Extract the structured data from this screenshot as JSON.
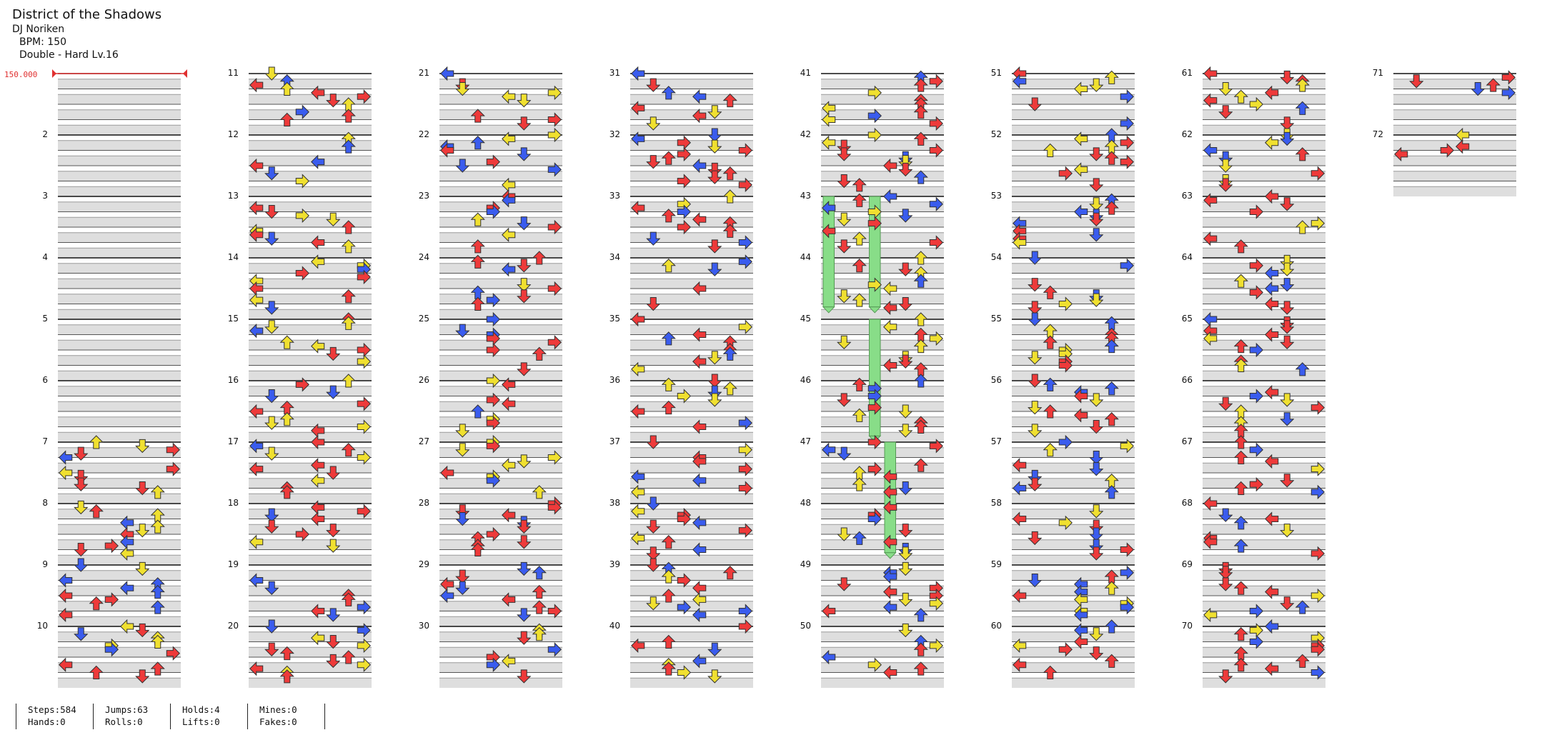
{
  "song": {
    "title": "District of the Shadows",
    "artist": "DJ Noriken",
    "bpm_label": "BPM: 150",
    "difficulty": "Double - Hard Lv.16"
  },
  "bpm_marker": "150.000",
  "colors": {
    "red": "#ee3a3a",
    "blue": "#3a5cee",
    "yellow": "#f0e030",
    "magenta": "#e040e0",
    "hold": "#88dd88",
    "band": "#dedede",
    "line": "#111111"
  },
  "chart_data": {
    "type": "table",
    "measures": [
      1,
      2,
      3,
      4,
      5,
      6,
      7,
      8,
      9,
      10,
      11,
      12,
      13,
      14,
      15,
      16,
      17,
      18,
      19,
      20,
      21,
      22,
      23,
      24,
      25,
      26,
      27,
      28,
      29,
      30,
      31,
      32,
      33,
      34,
      35,
      36,
      37,
      38,
      39,
      40,
      41,
      42,
      43,
      44,
      45,
      46,
      47,
      48,
      49,
      50,
      51,
      52,
      53,
      54,
      55,
      56,
      57,
      58,
      59,
      60,
      61,
      62,
      63,
      64,
      65,
      66,
      67,
      68,
      69,
      70,
      71,
      72
    ],
    "measure_labels": [
      "2",
      "3",
      "4",
      "5",
      "6",
      "7",
      "8",
      "9",
      "10",
      "11",
      "12",
      "13",
      "14",
      "15",
      "16",
      "17",
      "18",
      "19",
      "20",
      "21",
      "22",
      "23",
      "24",
      "25",
      "26",
      "27",
      "28",
      "29",
      "30",
      "31",
      "32",
      "33",
      "34",
      "35",
      "36",
      "37",
      "38",
      "39",
      "40",
      "41",
      "42",
      "43",
      "44",
      "45",
      "46",
      "47",
      "48",
      "49",
      "50",
      "51",
      "52",
      "53",
      "54",
      "55",
      "56",
      "57",
      "58",
      "59",
      "60",
      "61",
      "62",
      "63",
      "64",
      "65",
      "66",
      "67",
      "68",
      "69",
      "70",
      "71",
      "72"
    ],
    "columns": 8,
    "measures_per_column": 10,
    "lanes": 8,
    "holds": [
      {
        "lane": 0,
        "start": 43.0,
        "end": 44.8
      },
      {
        "lane": 3,
        "start": 43.0,
        "end": 44.8
      },
      {
        "lane": 3,
        "start": 45.0,
        "end": 46.9
      },
      {
        "lane": 4,
        "start": 47.0,
        "end": 48.8
      }
    ]
  },
  "stats": [
    {
      "a": "Steps:584",
      "b": "Hands:0"
    },
    {
      "a": "Jumps:63",
      "b": "Rolls:0"
    },
    {
      "a": "Holds:4",
      "b": "Lifts:0"
    },
    {
      "a": "Mines:0",
      "b": "Fakes:0"
    }
  ]
}
